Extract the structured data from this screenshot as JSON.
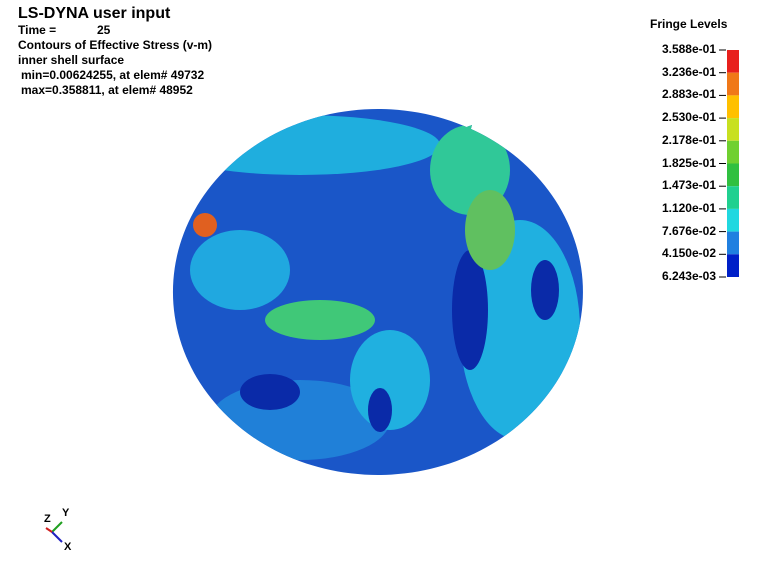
{
  "header": {
    "title": "LS-DYNA user input",
    "time_label": "Time =",
    "time_value": "25",
    "lines": [
      "Contours of Effective Stress (v-m)",
      "inner shell surface",
      "min=0.00624255, at elem# 49732",
      "max=0.358811, at elem# 48952"
    ]
  },
  "legend": {
    "title": "Fringe Levels",
    "levels": [
      "3.588e-01",
      "3.236e-01",
      "2.883e-01",
      "2.530e-01",
      "2.178e-01",
      "1.825e-01",
      "1.473e-01",
      "1.120e-01",
      "7.676e-02",
      "4.150e-02",
      "6.243e-03"
    ]
  },
  "triad": {
    "z": "Z",
    "y": "Y",
    "x": "X"
  }
}
